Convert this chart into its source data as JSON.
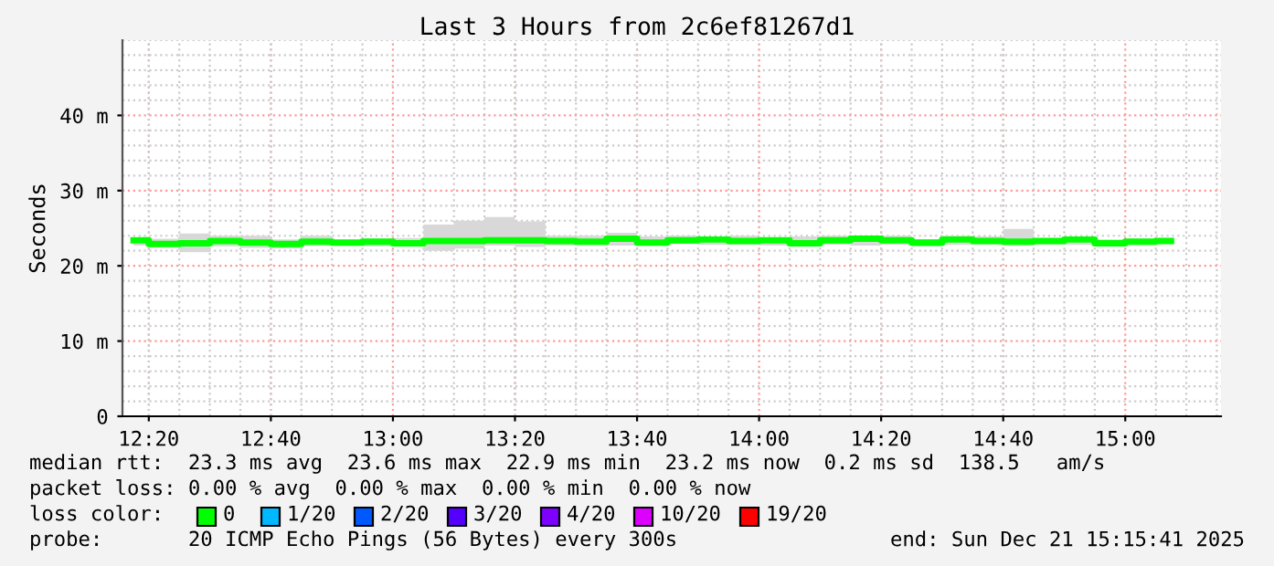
{
  "chart_data": {
    "type": "step",
    "title": "Last 3 Hours from 2c6ef81267d1",
    "ylabel": "Seconds",
    "x": [
      12.2917,
      12.375,
      12.4583,
      12.5417,
      12.625,
      12.7083,
      12.7917,
      12.875,
      12.9583,
      13.0417,
      13.125,
      13.2083,
      13.2917,
      13.375,
      13.4583,
      13.5417,
      13.625,
      13.7083,
      13.7917,
      13.875,
      13.9583,
      14.0417,
      14.125,
      14.2083,
      14.2917,
      14.375,
      14.4583,
      14.5417,
      14.625,
      14.7083,
      14.7917,
      14.875,
      14.9583,
      15.0417,
      15.125
    ],
    "series": [
      {
        "color": "#00ff00",
        "values": [
          23.4,
          22.9,
          23.0,
          23.3,
          23.1,
          22.9,
          23.2,
          23.1,
          23.2,
          23.0,
          23.3,
          23.3,
          23.4,
          23.4,
          23.3,
          23.2,
          23.6,
          23.1,
          23.4,
          23.5,
          23.3,
          23.4,
          23.0,
          23.4,
          23.6,
          23.4,
          23.1,
          23.5,
          23.3,
          23.2,
          23.3,
          23.5,
          23.0,
          23.2,
          23.3
        ],
        "lower": [
          22.7,
          22.6,
          21.8,
          22.6,
          22.4,
          22.3,
          22.7,
          22.8,
          22.6,
          22.8,
          22.0,
          22.3,
          22.7,
          22.5,
          22.7,
          22.8,
          22.7,
          22.7,
          22.9,
          22.8,
          22.8,
          22.7,
          22.6,
          22.8,
          22.7,
          22.8,
          22.5,
          22.8,
          22.8,
          22.7,
          22.8,
          22.8,
          22.6,
          22.8,
          22.9
        ],
        "upper": [
          23.6,
          23.6,
          24.3,
          24.0,
          24.0,
          23.5,
          24.0,
          23.4,
          23.6,
          23.7,
          25.5,
          26.0,
          26.5,
          25.9,
          24.0,
          24.0,
          24.4,
          23.9,
          24.0,
          23.8,
          24.0,
          23.5,
          23.9,
          24.0,
          23.9,
          24.0,
          23.5,
          24.0,
          23.9,
          24.9,
          23.5,
          23.6,
          23.5,
          23.6,
          23.7
        ]
      }
    ],
    "xlim": [
      12.2614,
      15.2614
    ],
    "xticks": [
      {
        "value": 12.3333,
        "label": "12:20"
      },
      {
        "value": 12.6667,
        "label": "12:40"
      },
      {
        "value": 13.0,
        "label": "13:00"
      },
      {
        "value": 13.3333,
        "label": "13:20"
      },
      {
        "value": 13.6667,
        "label": "13:40"
      },
      {
        "value": 14.0,
        "label": "14:00"
      },
      {
        "value": 14.3333,
        "label": "14:20"
      },
      {
        "value": 14.6667,
        "label": "14:40"
      },
      {
        "value": 15.0,
        "label": "15:00"
      }
    ],
    "ylim": [
      0,
      50
    ],
    "yticks": [
      0,
      {
        "value": 10,
        "label": "10 m"
      },
      {
        "value": 20,
        "label": "20 m"
      },
      {
        "value": 30,
        "label": "30 m"
      },
      {
        "value": 40,
        "label": "40 m"
      }
    ],
    "grid": true,
    "annotations": [
      "median rtt:  23.3 ms avg  23.6 ms max  22.9 ms min  23.2 ms now  0.2 ms sd  138.5   am/s",
      "packet loss: 0.00 % avg  0.00 % max  0.00 % min  0.00 % now",
      "loss color:",
      "0",
      "1/20",
      "2/20",
      "3/20",
      "4/20",
      "10/20",
      "19/20",
      "probe:       20 ICMP Echo Pings (56 Bytes) every 300s",
      "end: Sun Dec 21 15:15:41 2025"
    ]
  }
}
